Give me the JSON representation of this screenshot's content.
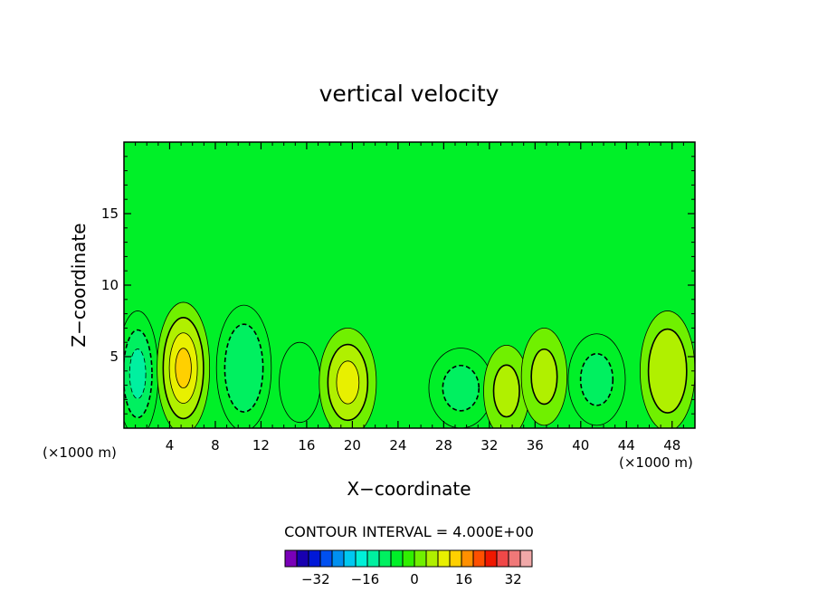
{
  "chart_data": {
    "type": "heatmap",
    "title": "vertical velocity",
    "xlabel": "X−coordinate",
    "ylabel": "Z−coordinate",
    "x_unit_left": "(×1000 m)",
    "x_unit_right": "(×1000 m)",
    "xlim": [
      0,
      50
    ],
    "ylim": [
      0,
      20
    ],
    "x_ticks": [
      4,
      8,
      12,
      16,
      20,
      24,
      28,
      32,
      36,
      40,
      44,
      48
    ],
    "x_tick_labels": [
      "4",
      "8",
      "12",
      "16",
      "20",
      "24",
      "28",
      "32",
      "36",
      "40",
      "44",
      "48"
    ],
    "y_ticks": [
      5,
      10,
      15
    ],
    "y_tick_labels": [
      "5",
      "10",
      "15"
    ],
    "contour_interval_label": "CONTOUR INTERVAL = 4.000E+00",
    "contour_interval": 4,
    "background_level": 0,
    "cells": [
      {
        "cx": 1.2,
        "cz": 3.8,
        "rx": 1.8,
        "rz": 4.4,
        "amp": -10
      },
      {
        "cx": 5.2,
        "cz": 4.2,
        "rx": 2.3,
        "rz": 4.6,
        "amp": 14
      },
      {
        "cx": 10.5,
        "cz": 4.2,
        "rx": 2.4,
        "rz": 4.4,
        "amp": -9
      },
      {
        "cx": 15.4,
        "cz": 3.2,
        "rx": 1.8,
        "rz": 2.8,
        "amp": -4
      },
      {
        "cx": 19.6,
        "cz": 3.2,
        "rx": 2.5,
        "rz": 3.8,
        "amp": 10
      },
      {
        "cx": 29.5,
        "cz": 2.8,
        "rx": 2.8,
        "rz": 2.8,
        "amp": -6
      },
      {
        "cx": 33.5,
        "cz": 2.6,
        "rx": 2.0,
        "rz": 3.2,
        "amp": 7
      },
      {
        "cx": 36.8,
        "cz": 3.6,
        "rx": 2.0,
        "rz": 3.4,
        "amp": 7
      },
      {
        "cx": 41.4,
        "cz": 3.4,
        "rx": 2.5,
        "rz": 3.2,
        "amp": -7
      },
      {
        "cx": 47.6,
        "cz": 4.0,
        "rx": 2.4,
        "rz": 4.2,
        "amp": 9
      }
    ],
    "legend": {
      "colors": [
        "#7a00b8",
        "#1800b0",
        "#0018d8",
        "#0050f0",
        "#0090f0",
        "#00c8f0",
        "#00f0d8",
        "#00f0a0",
        "#00f060",
        "#00f028",
        "#30f000",
        "#70f000",
        "#b0f000",
        "#e8f000",
        "#ffd000",
        "#ff9000",
        "#ff5000",
        "#f01800",
        "#f04848",
        "#f07878",
        "#f0a8a8"
      ],
      "tick_values": [
        -32,
        -16,
        0,
        16,
        32
      ],
      "tick_labels": [
        "−32",
        "−16",
        "0",
        "16",
        "32"
      ],
      "range": [
        -40,
        40
      ]
    }
  }
}
